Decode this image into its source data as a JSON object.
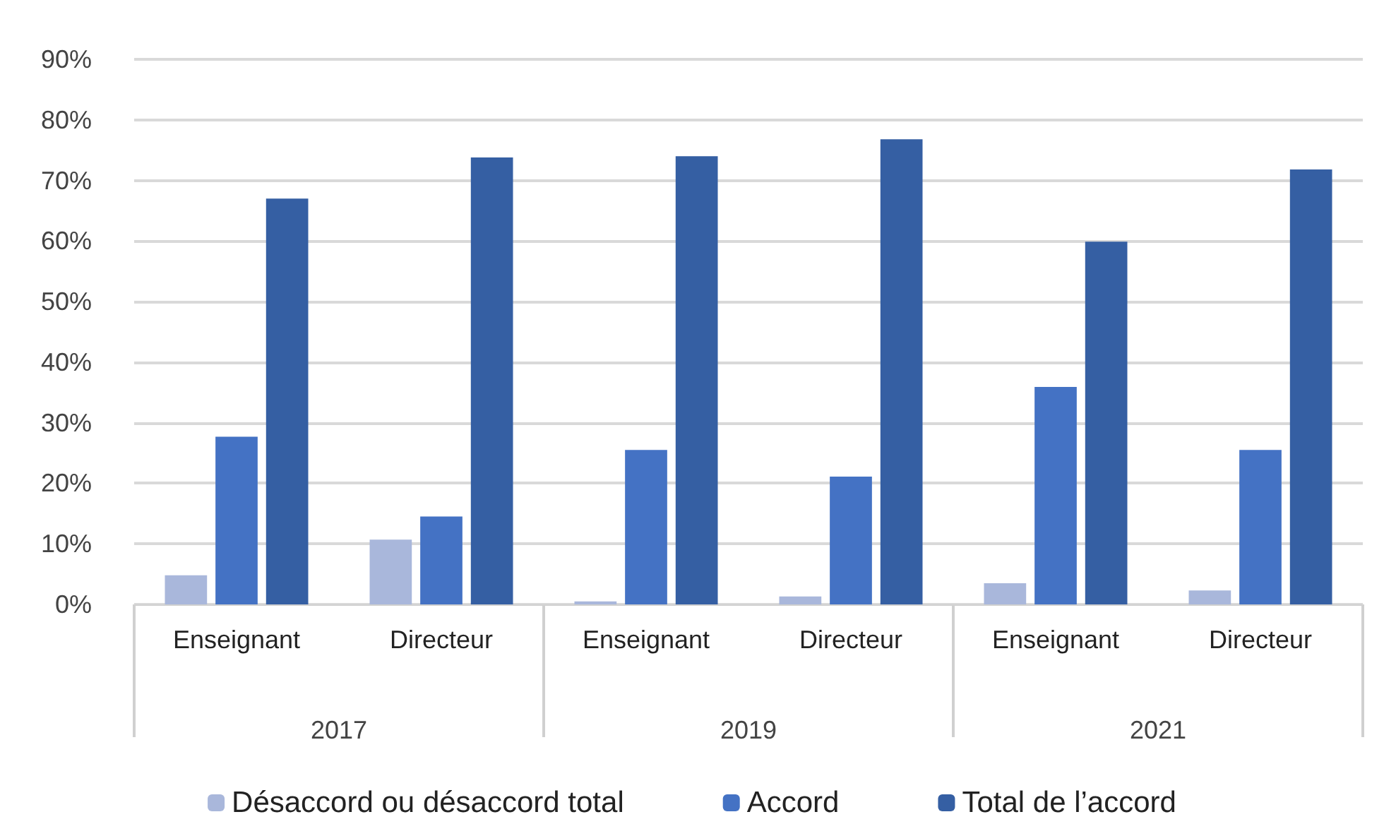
{
  "chart_data": {
    "type": "bar",
    "categories": [
      "Enseignant",
      "Directeur",
      "Enseignant",
      "Directeur",
      "Enseignant",
      "Directeur"
    ],
    "annotations": [
      "2017",
      "2019",
      "2021"
    ],
    "series": [
      {
        "name": "Désaccord ou désaccord total",
        "color": "#a9b7db",
        "values": [
          4.8,
          10.7,
          0.5,
          1.3,
          3.5,
          2.3
        ]
      },
      {
        "name": "Accord",
        "color": "#4472c4",
        "values": [
          27.7,
          14.5,
          25.5,
          21.1,
          35.9,
          25.5
        ]
      },
      {
        "name": "Total de l’accord",
        "color": "#355fa3",
        "values": [
          67.0,
          73.8,
          74.0,
          76.8,
          59.9,
          71.8
        ]
      }
    ],
    "ylim": [
      0,
      90
    ],
    "yticks": [
      {
        "value": 0,
        "label": "0%"
      },
      {
        "value": 10,
        "label": "10%"
      },
      {
        "value": 20,
        "label": "20%"
      },
      {
        "value": 30,
        "label": "30%"
      },
      {
        "value": 40,
        "label": "40%"
      },
      {
        "value": 50,
        "label": "50%"
      },
      {
        "value": 60,
        "label": "60%"
      },
      {
        "value": 70,
        "label": "70%"
      },
      {
        "value": 80,
        "label": "80%"
      },
      {
        "value": 90,
        "label": "90%"
      }
    ],
    "grid": "y",
    "legend": "bottom"
  }
}
